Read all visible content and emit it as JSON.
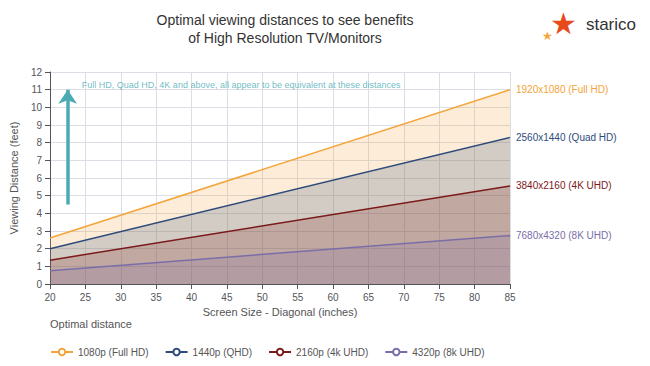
{
  "chart_data": {
    "type": "line",
    "title": "Optimal viewing distances to see benefits\nof High Resolution TV/Monitors",
    "xlabel": "Screen Size - Diagonal (inches)",
    "ylabel": "Viewing Distance (feet)",
    "x": [
      20,
      85
    ],
    "xlim": [
      20,
      85
    ],
    "ylim": [
      0,
      12
    ],
    "xticks": [
      20,
      25,
      30,
      35,
      40,
      45,
      50,
      55,
      60,
      65,
      70,
      75,
      80,
      85
    ],
    "yticks": [
      0,
      1,
      2,
      3,
      4,
      5,
      6,
      7,
      8,
      9,
      10,
      11,
      12
    ],
    "grid": true,
    "legend": "lower left",
    "legend_title": "Optimal distance",
    "series": [
      {
        "name": "1080p (Full HD)",
        "end_label": "1920x1080 (Full HD)",
        "color": "#F4A43A",
        "values": [
          2.6,
          11.0
        ]
      },
      {
        "name": "1440p (QHD)",
        "end_label": "2560x1440 (Quad HD)",
        "color": "#2E4B7A",
        "values": [
          2.0,
          8.3
        ]
      },
      {
        "name": "2160p (4k UHD)",
        "end_label": "3840x2160 (4K UHD)",
        "color": "#7B1A1A",
        "values": [
          1.35,
          5.55
        ]
      },
      {
        "name": "4320p (8k UHD)",
        "end_label": "7680x4320 (8K UHD)",
        "color": "#7B6EA8",
        "values": [
          0.75,
          2.75
        ]
      }
    ],
    "annotations": [
      {
        "text": "Full HD, Quad HD, 4K and above, all appear to be equivalent at these distances",
        "x": 24.5,
        "y": 11.5,
        "color": "#4AABB5"
      }
    ],
    "arrow": {
      "x": 22.5,
      "y_start": 4.5,
      "y_end": 11.0,
      "color": "#4AABB5"
    },
    "logo": {
      "text": "starico",
      "symbol": "★",
      "colors": [
        "#E84A1A",
        "#F4A43A"
      ]
    }
  }
}
